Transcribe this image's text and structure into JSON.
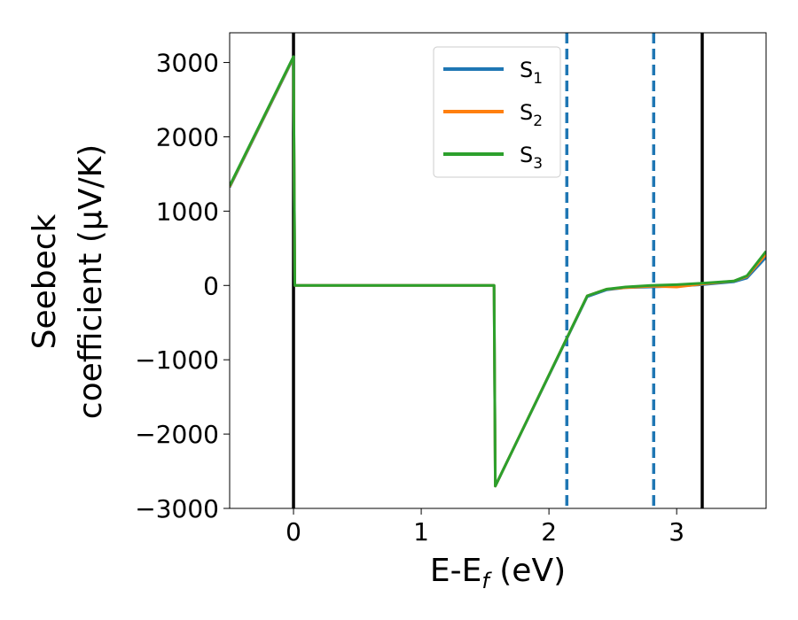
{
  "chart_data": {
    "type": "line",
    "xlabel": "E-E",
    "xlabel_sub": "f",
    "xlabel_unit": " (eV)",
    "ylabel_line1": "Seebeck",
    "ylabel_line2": "coefficient  (μV/K)",
    "xlim": [
      -0.5,
      3.7
    ],
    "ylim": [
      -3000,
      3400
    ],
    "xticks": [
      0,
      1,
      2,
      3
    ],
    "xtick_labels": [
      "0",
      "1",
      "2",
      "3"
    ],
    "yticks": [
      -3000,
      -2000,
      -1000,
      0,
      1000,
      2000,
      3000
    ],
    "ytick_labels": [
      "−3000",
      "−2000",
      "−1000",
      "0",
      "1000",
      "2000",
      "3000"
    ],
    "grid": false,
    "legend_position": "top-center",
    "vlines": [
      {
        "x": 0.0,
        "color": "#000000",
        "style": "solid"
      },
      {
        "x": 3.2,
        "color": "#000000",
        "style": "solid"
      },
      {
        "x": 2.14,
        "color": "#1f77b4",
        "style": "dashed"
      },
      {
        "x": 2.82,
        "color": "#1f77b4",
        "style": "dashed"
      }
    ],
    "series": [
      {
        "name": "S",
        "name_sub": "1",
        "color": "#1f77b4",
        "x": [
          -0.5,
          0.0,
          0.01,
          1.57,
          1.58,
          2.3,
          2.45,
          2.6,
          2.8,
          3.0,
          3.2,
          3.45,
          3.55,
          3.7
        ],
        "y": [
          1320,
          3060,
          0,
          0,
          -2700,
          -150,
          -60,
          -30,
          -20,
          -10,
          10,
          50,
          100,
          380
        ]
      },
      {
        "name": "S",
        "name_sub": "2",
        "color": "#ff7f0e",
        "x": [
          -0.5,
          0.0,
          0.01,
          1.57,
          1.58,
          2.3,
          2.45,
          2.6,
          2.8,
          3.0,
          3.2,
          3.45,
          3.55,
          3.7
        ],
        "y": [
          1330,
          3070,
          0,
          0,
          -2700,
          -140,
          -50,
          -30,
          -10,
          -20,
          20,
          60,
          120,
          420
        ]
      },
      {
        "name": "S",
        "name_sub": "3",
        "color": "#2ca02c",
        "x": [
          -0.5,
          0.0,
          0.01,
          1.57,
          1.58,
          2.3,
          2.45,
          2.6,
          2.8,
          3.0,
          3.2,
          3.45,
          3.55,
          3.7
        ],
        "y": [
          1340,
          3080,
          0,
          0,
          -2700,
          -140,
          -50,
          -20,
          0,
          10,
          30,
          60,
          130,
          460
        ]
      }
    ]
  }
}
